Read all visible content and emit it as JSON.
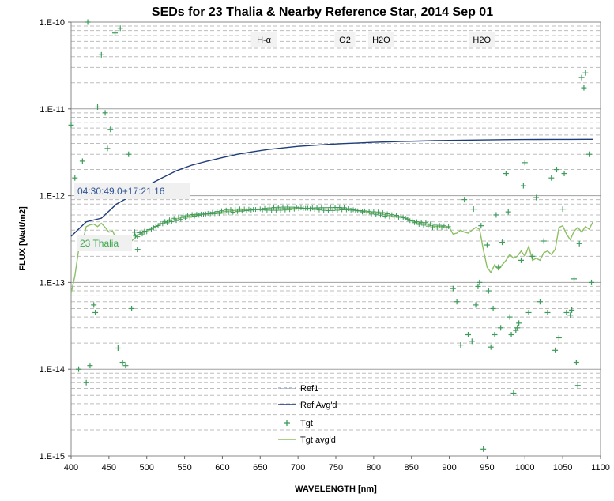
{
  "chart_data": {
    "type": "scatter",
    "title": "SEDs for 23 Thalia & Nearby Reference Star, 2014 Sep 01",
    "xlabel": "WAVELENGTH [nm]",
    "ylabel": "FLUX [Watt/m2]",
    "xlim": [
      400,
      1100
    ],
    "ylim": [
      1e-15,
      1e-10
    ],
    "yscale": "log",
    "grid": "horizontal dashed minor lines",
    "x_ticks": [
      "400",
      "450",
      "500",
      "550",
      "600",
      "650",
      "700",
      "750",
      "800",
      "850",
      "900",
      "950",
      "1000",
      "1050",
      "1100"
    ],
    "y_ticks": [
      "1.E-15",
      "1.E-14",
      "1.E-13",
      "1.E-12",
      "1.E-11",
      "1.E-10"
    ],
    "annotations": [
      {
        "text": "H-α",
        "x": 655
      },
      {
        "text": "O2",
        "x": 762
      },
      {
        "text": "H2O",
        "x": 810
      },
      {
        "text": "H2O",
        "x": 943
      }
    ],
    "callouts": [
      {
        "text": "04:30:49.0+17:21:16",
        "color": "#2f5597"
      },
      {
        "text": "23 Thalia",
        "color": "#3daa4e"
      }
    ],
    "legend": {
      "position": "bottom-right",
      "entries": [
        "Ref1",
        "Ref Avg'd",
        "Tgt",
        "Tgt avg'd"
      ]
    },
    "series": [
      {
        "name": "Ref Avg'd",
        "color": "#1f3d7a",
        "style": "line",
        "x": [
          400,
          420,
          440,
          460,
          480,
          500,
          520,
          540,
          560,
          580,
          600,
          620,
          640,
          660,
          680,
          700,
          720,
          740,
          760,
          780,
          800,
          820,
          840,
          860,
          880,
          900,
          920,
          940,
          960,
          980,
          1000,
          1020,
          1040,
          1060,
          1080,
          1090
        ],
        "y": [
          3.4e-13,
          5e-13,
          5.5e-13,
          8e-13,
          1e-12,
          1.3e-12,
          1.6e-12,
          1.95e-12,
          2.25e-12,
          2.5e-12,
          2.75e-12,
          3e-12,
          3.2e-12,
          3.4e-12,
          3.55e-12,
          3.7e-12,
          3.8e-12,
          3.9e-12,
          3.98e-12,
          4.05e-12,
          4.12e-12,
          4.17e-12,
          4.22e-12,
          4.26e-12,
          4.3e-12,
          4.33e-12,
          4.36e-12,
          4.38e-12,
          4.4e-12,
          4.42e-12,
          4.43e-12,
          4.44e-12,
          4.45e-12,
          4.45e-12,
          4.46e-12,
          4.46e-12
        ]
      },
      {
        "name": "Tgt avg'd",
        "color": "#8cc063",
        "style": "line",
        "x": [
          400,
          405,
          410,
          415,
          420,
          425,
          430,
          435,
          440,
          445,
          450,
          455,
          460,
          465,
          470,
          475,
          480,
          485,
          490,
          500,
          510,
          520,
          530,
          540,
          550,
          560,
          580,
          600,
          620,
          640,
          660,
          680,
          700,
          720,
          740,
          760,
          780,
          800,
          810,
          820,
          830,
          840,
          850,
          860,
          870,
          880,
          890,
          900,
          905,
          910,
          915,
          920,
          925,
          930,
          935,
          940,
          945,
          950,
          955,
          960,
          965,
          970,
          975,
          980,
          985,
          990,
          995,
          1000,
          1005,
          1010,
          1015,
          1020,
          1025,
          1030,
          1035,
          1040,
          1045,
          1050,
          1055,
          1060,
          1065,
          1070,
          1075,
          1080,
          1085,
          1090
        ],
        "y": [
          7.5e-14,
          1.2e-13,
          2.4e-13,
          2.9e-13,
          4.4e-13,
          4.6e-13,
          4.7e-13,
          4.4e-13,
          4.8e-13,
          4.3e-13,
          3.8e-13,
          3.9e-13,
          3.1e-13,
          3.3e-13,
          3.5e-13,
          3.3e-13,
          3e-13,
          3.3e-13,
          3.6e-13,
          3.9e-13,
          4.3e-13,
          4.8e-13,
          5.1e-13,
          5.4e-13,
          5.7e-13,
          5.9e-13,
          6.2e-13,
          6.5e-13,
          6.8e-13,
          6.9e-13,
          7e-13,
          7.1e-13,
          7.2e-13,
          7.1e-13,
          7e-13,
          7.1e-13,
          6.7e-13,
          6.3e-13,
          6.2e-13,
          5.9e-13,
          5.8e-13,
          5.6e-13,
          5.1e-13,
          4.8e-13,
          4.7e-13,
          4.4e-13,
          4.4e-13,
          4.3e-13,
          3.6e-13,
          3.7e-13,
          4e-13,
          3.8e-13,
          3.7e-13,
          4e-13,
          4.3e-13,
          4.1e-13,
          2.4e-13,
          1.5e-13,
          1.3e-13,
          1.6e-13,
          1.4e-13,
          1.6e-13,
          1.8e-13,
          2.1e-13,
          1.9e-13,
          2e-13,
          2.3e-13,
          2e-13,
          2.6e-13,
          1.8e-13,
          1.9e-13,
          1.8e-13,
          2.2e-13,
          2.3e-13,
          2.1e-13,
          2.4e-13,
          4.3e-13,
          4.5e-13,
          3.6e-13,
          3.1e-13,
          3.9e-13,
          4.3e-13,
          3.8e-13,
          4.4e-13,
          4.1e-13,
          5e-13
        ]
      },
      {
        "name": "Tgt",
        "color": "#3d9a5a",
        "style": "markers",
        "x": [
          400,
          405,
          410,
          415,
          420,
          422,
          425,
          430,
          432,
          435,
          440,
          445,
          448,
          452,
          455,
          458,
          462,
          465,
          468,
          472,
          476,
          480,
          484,
          488,
          905,
          910,
          915,
          920,
          925,
          930,
          932,
          935,
          938,
          940,
          942,
          945,
          950,
          952,
          955,
          958,
          960,
          962,
          965,
          968,
          970,
          975,
          978,
          980,
          982,
          985,
          988,
          990,
          992,
          995,
          998,
          1000,
          1005,
          1010,
          1015,
          1020,
          1025,
          1030,
          1035,
          1040,
          1042,
          1045,
          1050,
          1052,
          1055,
          1060,
          1062,
          1065,
          1068,
          1070,
          1072,
          1075,
          1078,
          1080,
          1085,
          1088
        ],
        "y": [
          6.5e-12,
          1.6e-12,
          1e-14,
          2.5e-12,
          7e-15,
          1e-10,
          1.1e-14,
          5.5e-14,
          4.5e-14,
          1.05e-11,
          4.2e-11,
          9e-12,
          3.5e-12,
          5.8e-12,
          1.1e-12,
          7.5e-11,
          1.75e-14,
          8.5e-11,
          1.2e-14,
          1.1e-14,
          3e-12,
          5e-14,
          3.8e-13,
          2.4e-13,
          8.5e-14,
          6e-14,
          1.9e-14,
          9e-13,
          2.5e-14,
          2.1e-14,
          7e-13,
          5.5e-14,
          9e-14,
          1e-13,
          4.5e-13,
          1.2e-15,
          2.7e-13,
          8e-14,
          1.8e-14,
          5e-14,
          2.5e-14,
          6e-13,
          1.5e-13,
          3e-14,
          2.9e-13,
          1.8e-12,
          6.5e-13,
          4e-14,
          2.5e-14,
          5.3e-15,
          2.8e-14,
          3e-14,
          3.4e-14,
          1.8e-13,
          1.3e-12,
          2.4e-12,
          4.5e-14,
          2e-13,
          9.5e-13,
          6e-14,
          3e-13,
          4.5e-14,
          1.6e-12,
          1.65e-14,
          2e-12,
          2.3e-14,
          7e-13,
          1.8e-12,
          4.5e-14,
          4.2e-14,
          4.8e-14,
          1.1e-13,
          1.2e-14,
          6.5e-15,
          2.8e-13,
          2.3e-11,
          1.75e-11,
          2.6e-11,
          3e-12,
          1e-13
        ]
      }
    ]
  }
}
